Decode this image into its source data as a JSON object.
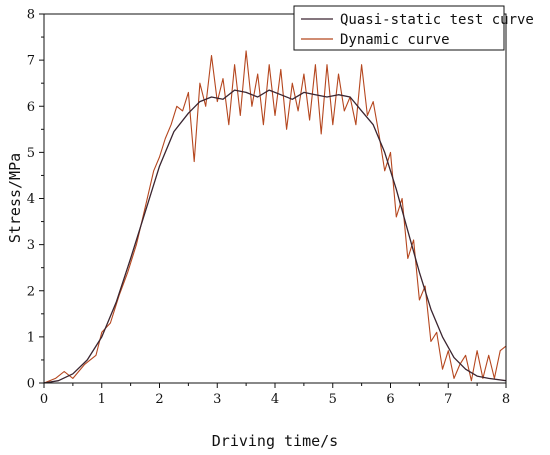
{
  "chart_data": {
    "type": "line",
    "title": "",
    "xlabel": "Driving time/s",
    "ylabel": "Stress/MPa",
    "xlim": [
      0,
      8
    ],
    "ylim": [
      0,
      8
    ],
    "x_ticks": [
      "0",
      "1",
      "2",
      "3",
      "4",
      "5",
      "6",
      "7",
      "8"
    ],
    "y_ticks": [
      "0",
      "1",
      "2",
      "3",
      "4",
      "5",
      "6",
      "7",
      "8"
    ],
    "grid": false,
    "legend_position": "top-right",
    "series": [
      {
        "name": "Quasi-static test curve",
        "color": "#3a2530",
        "x": [
          0,
          0.25,
          0.5,
          0.75,
          1.0,
          1.25,
          1.5,
          1.75,
          2.0,
          2.25,
          2.5,
          2.7,
          2.9,
          3.1,
          3.3,
          3.5,
          3.7,
          3.9,
          4.1,
          4.3,
          4.5,
          4.7,
          4.9,
          5.1,
          5.3,
          5.5,
          5.7,
          5.9,
          6.1,
          6.3,
          6.5,
          6.7,
          6.9,
          7.1,
          7.3,
          7.5,
          7.7,
          8.0
        ],
        "values": [
          0.0,
          0.05,
          0.2,
          0.5,
          1.0,
          1.75,
          2.7,
          3.7,
          4.7,
          5.45,
          5.85,
          6.1,
          6.2,
          6.15,
          6.35,
          6.3,
          6.2,
          6.35,
          6.25,
          6.15,
          6.3,
          6.25,
          6.2,
          6.25,
          6.2,
          5.9,
          5.6,
          5.0,
          4.2,
          3.3,
          2.4,
          1.6,
          1.0,
          0.55,
          0.3,
          0.15,
          0.1,
          0.05
        ]
      },
      {
        "name": "Dynamic curve",
        "color": "#b5471f",
        "x": [
          0,
          0.2,
          0.35,
          0.5,
          0.7,
          0.9,
          1.0,
          1.15,
          1.3,
          1.45,
          1.6,
          1.75,
          1.9,
          2.0,
          2.1,
          2.2,
          2.3,
          2.4,
          2.5,
          2.6,
          2.7,
          2.8,
          2.9,
          3.0,
          3.1,
          3.2,
          3.3,
          3.4,
          3.5,
          3.6,
          3.7,
          3.8,
          3.9,
          4.0,
          4.1,
          4.2,
          4.3,
          4.4,
          4.5,
          4.6,
          4.7,
          4.8,
          4.9,
          5.0,
          5.1,
          5.2,
          5.3,
          5.4,
          5.5,
          5.6,
          5.7,
          5.8,
          5.9,
          6.0,
          6.1,
          6.2,
          6.3,
          6.4,
          6.5,
          6.6,
          6.7,
          6.8,
          6.9,
          7.0,
          7.1,
          7.2,
          7.3,
          7.4,
          7.5,
          7.6,
          7.7,
          7.8,
          7.9,
          8.0
        ],
        "values": [
          0.0,
          0.1,
          0.25,
          0.1,
          0.4,
          0.6,
          1.1,
          1.3,
          1.9,
          2.4,
          3.0,
          3.8,
          4.6,
          4.9,
          5.3,
          5.6,
          6.0,
          5.9,
          6.3,
          4.8,
          6.5,
          6.0,
          7.1,
          6.1,
          6.6,
          5.6,
          6.9,
          5.8,
          7.2,
          6.0,
          6.7,
          5.6,
          6.9,
          5.8,
          6.8,
          5.5,
          6.5,
          5.9,
          6.7,
          5.7,
          6.9,
          5.4,
          6.9,
          5.6,
          6.7,
          5.9,
          6.2,
          5.6,
          6.9,
          5.8,
          6.1,
          5.4,
          4.6,
          5.0,
          3.6,
          4.0,
          2.7,
          3.1,
          1.8,
          2.1,
          0.9,
          1.1,
          0.3,
          0.7,
          0.1,
          0.4,
          0.6,
          0.05,
          0.7,
          0.1,
          0.6,
          0.1,
          0.7,
          0.8
        ]
      }
    ]
  }
}
